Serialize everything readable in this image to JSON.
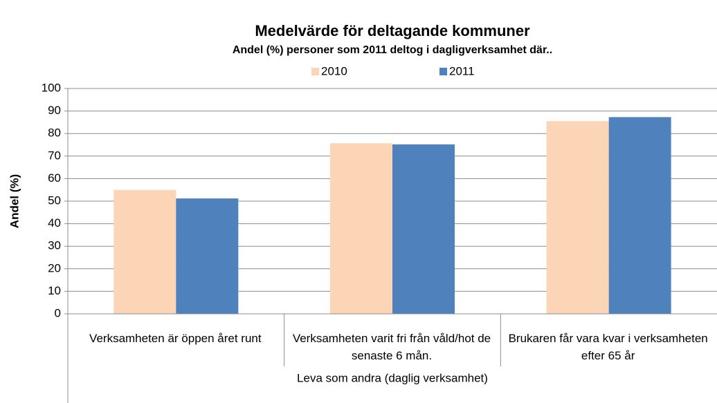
{
  "chart_data": {
    "type": "bar",
    "title": "Medelvärde för deltagande kommuner",
    "subtitle": "Andel (%) personer som 2011 deltog i dagligverksamhet där..",
    "y_label": "Andel (%)",
    "categories": [
      "Verksamheten är öppen året runt",
      "Verksamheten varit fri från våld/hot de senaste 6 mån.",
      "Brukaren får vara kvar i verksamheten efter 65 år"
    ],
    "category_group": "Leva som andra (daglig verksamhet)",
    "series": [
      {
        "name": "2010",
        "color": "#fbd5b5",
        "values": [
          55,
          75.7,
          85.5
        ]
      },
      {
        "name": "2011",
        "color": "#4f81bd",
        "values": [
          51.2,
          75.2,
          87.3
        ]
      }
    ],
    "ylim": [
      0,
      100
    ],
    "yticks": [
      0,
      10,
      20,
      30,
      40,
      50,
      60,
      70,
      80,
      90,
      100
    ],
    "grid": true,
    "legend": "top"
  }
}
